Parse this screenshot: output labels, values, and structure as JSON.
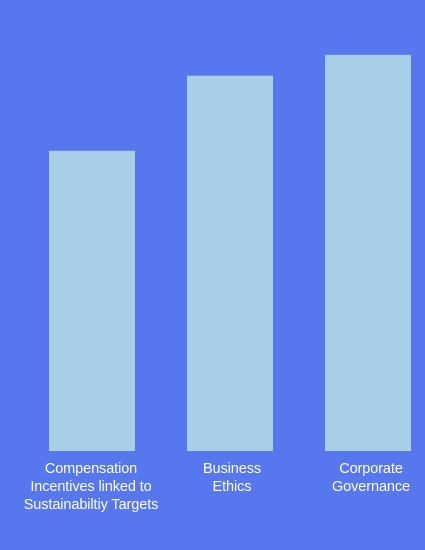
{
  "colors": {
    "background": "#5677ee",
    "bar": "#a8cfe8",
    "label": "#ffffff"
  },
  "chart_data": {
    "type": "bar",
    "categories": [
      "Compensation Incentives linked to Sustainabiltiy Targets",
      "Business Ethics",
      "Corporate Governance"
    ],
    "values": [
      72,
      90,
      95
    ],
    "ylim": [
      0,
      100
    ],
    "grid": false,
    "title": "",
    "xlabel": "",
    "ylabel": ""
  }
}
